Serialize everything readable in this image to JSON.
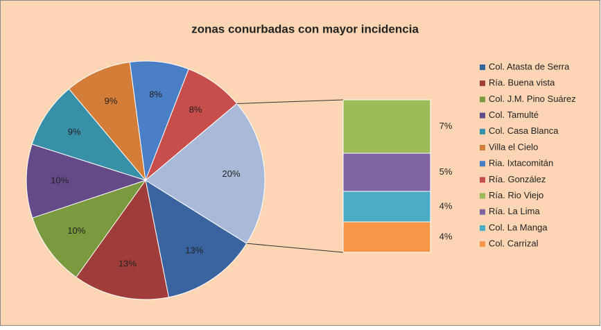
{
  "chart_data": {
    "type": "bar-of-pie",
    "title": "zonas conurbadas con mayor incidencia",
    "pie": {
      "labels": [
        "Col. Atasta de Serra",
        "Ría. Buena vista",
        "Col. J.M. Pino Suárez",
        "Col. Tamulté",
        "Col. Casa Blanca",
        "Villa el Cielo",
        "Ria. Ixtacomitán",
        "Ría. González"
      ],
      "values": [
        13,
        13,
        10,
        10,
        9,
        9,
        8,
        8
      ],
      "value_labels": [
        "13%",
        "13%",
        "10%",
        "10%",
        "9%",
        "9%",
        "8%",
        "8%"
      ],
      "colors": [
        "#3a64a0",
        "#a03d3b",
        "#7a9a3d",
        "#654a8a",
        "#3890a8",
        "#d47d38",
        "#4a7ec5",
        "#c84e4b"
      ]
    },
    "other": {
      "value": 20,
      "value_label": "20%",
      "color": "#a9b9d9"
    },
    "bar": {
      "labels": [
        "Ría. Rio Viejo",
        "Ría. La Lima",
        "Col. La Manga",
        "Col. Carrizal"
      ],
      "values": [
        7,
        5,
        4,
        4
      ],
      "value_labels": [
        "7%",
        "5%",
        "4%",
        "4%"
      ],
      "colors": [
        "#9bbb59",
        "#8064a2",
        "#4bacc6",
        "#f79646"
      ]
    }
  }
}
